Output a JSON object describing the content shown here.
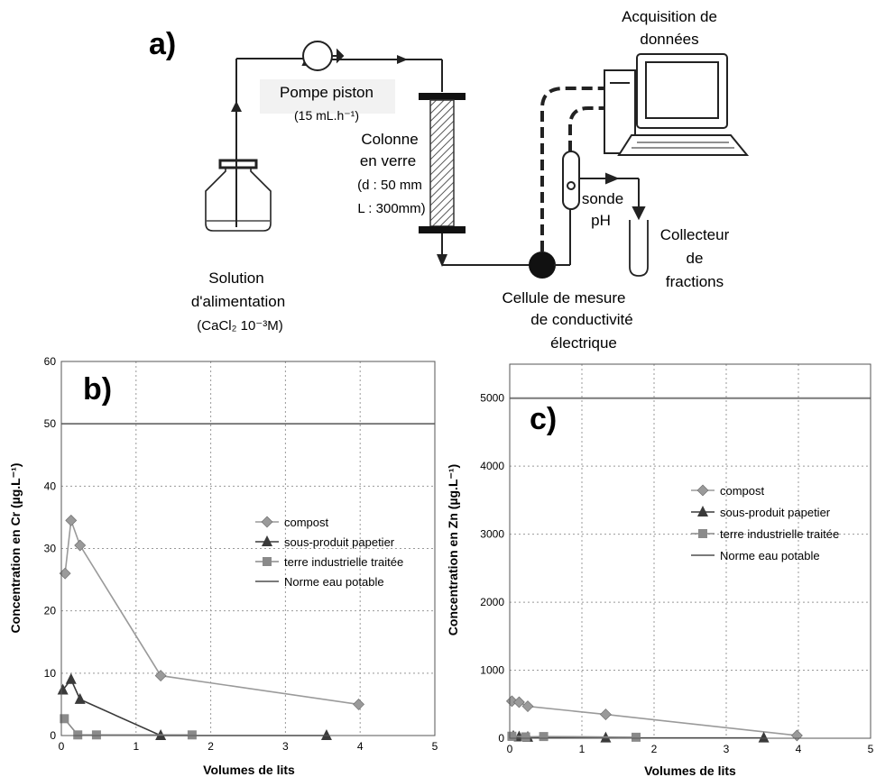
{
  "panel_a": {
    "label": "a)",
    "acquisition": [
      "Acquisition de",
      "données"
    ],
    "pump": [
      "Pompe piston",
      "(15 mL.h⁻¹)"
    ],
    "column": [
      "Colonne",
      "en verre",
      "(d : 50 mm",
      "L : 300mm)"
    ],
    "solution": [
      "Solution",
      "d'alimentation",
      "(CaCl₂ 10⁻³M)"
    ],
    "probe": [
      "sonde",
      "pH"
    ],
    "collector": [
      "Collecteur",
      "de",
      "fractions"
    ],
    "cell": [
      "Cellule de mesure",
      "de conductivité",
      "électrique"
    ]
  },
  "chart_data": [
    {
      "type": "line",
      "panel_label": "b)",
      "xlabel": "Volumes de lits",
      "ylabel": "Concentration en Cr (µg.L⁻¹)",
      "xlim": [
        0,
        5
      ],
      "ylim": [
        0,
        60
      ],
      "xticks": [
        0,
        1,
        2,
        3,
        4,
        5
      ],
      "yticks": [
        0,
        10,
        20,
        30,
        40,
        50,
        60
      ],
      "grid": true,
      "legend_position": "right",
      "series": [
        {
          "name": "compost",
          "marker": "diamond",
          "color": "#9a9a9a",
          "x": [
            0.05,
            0.13,
            0.25,
            1.33,
            3.98
          ],
          "y": [
            26,
            34.5,
            30.5,
            9.6,
            5
          ]
        },
        {
          "name": "sous-produit papetier",
          "marker": "triangle",
          "color": "#3a3a3a",
          "x": [
            0.02,
            0.13,
            0.25,
            1.33,
            3.55
          ],
          "y": [
            7.3,
            9,
            5.8,
            0,
            0
          ]
        },
        {
          "name": "terre industrielle traitée",
          "marker": "square",
          "color": "#8a8a8a",
          "x": [
            0.04,
            0.22,
            0.47,
            1.75
          ],
          "y": [
            2.7,
            0.1,
            0.1,
            0.1
          ]
        },
        {
          "name": "Norme eau potable",
          "marker": "none",
          "color": "#7a7a7a",
          "hline": 50
        }
      ]
    },
    {
      "type": "line",
      "panel_label": "c)",
      "xlabel": "Volumes de lits",
      "ylabel": "Concentration en Zn (µg.L⁻¹)",
      "xlim": [
        0,
        5
      ],
      "ylim": [
        0,
        5500
      ],
      "xticks": [
        0,
        1,
        2,
        3,
        4,
        5
      ],
      "yticks": [
        0,
        1000,
        2000,
        3000,
        4000,
        5000
      ],
      "grid": true,
      "legend_position": "right",
      "series": [
        {
          "name": "compost",
          "marker": "diamond",
          "color": "#9a9a9a",
          "x": [
            0.03,
            0.13,
            0.25,
            1.33,
            3.98
          ],
          "y": [
            545,
            530,
            470,
            350,
            40
          ]
        },
        {
          "name": "sous-produit papetier",
          "marker": "triangle",
          "color": "#3a3a3a",
          "x": [
            0.05,
            0.13,
            0.25,
            1.33,
            3.52
          ],
          "y": [
            30,
            20,
            15,
            5,
            5
          ]
        },
        {
          "name": "terre industrielle traitée",
          "marker": "square",
          "color": "#8a8a8a",
          "x": [
            0.03,
            0.22,
            0.47,
            1.75
          ],
          "y": [
            30,
            20,
            25,
            15
          ]
        },
        {
          "name": "Norme eau potable",
          "marker": "none",
          "color": "#7a7a7a",
          "hline": 5000
        }
      ]
    }
  ]
}
